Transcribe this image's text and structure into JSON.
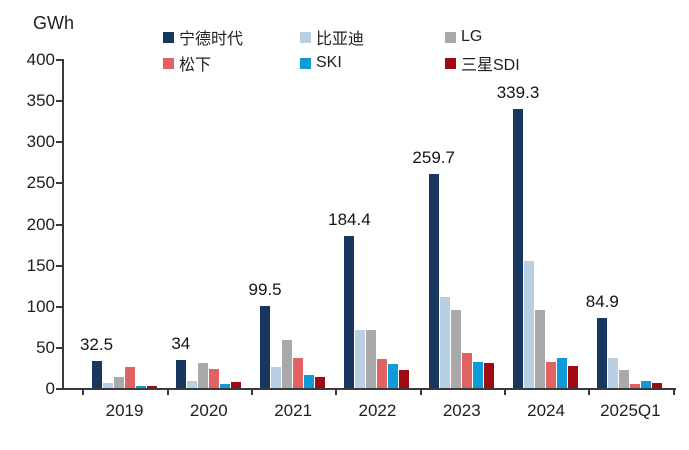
{
  "chart": {
    "unit_label": "GWh",
    "chart_data": {
      "type": "bar",
      "title": "",
      "xlabel": "",
      "ylabel": "GWh",
      "grid": false,
      "legend_position": "top",
      "categories": [
        "2019",
        "2020",
        "2021",
        "2022",
        "2023",
        "2024",
        "2025Q1"
      ],
      "series": [
        {
          "name": "宁德时代",
          "color": "#17375E",
          "values": [
            32.5,
            34,
            99.5,
            184.4,
            259.7,
            339.3,
            84.9
          ]
        },
        {
          "name": "比亚迪",
          "color": "#B8CFE4",
          "values": [
            6,
            9,
            25,
            70,
            111,
            154,
            36
          ]
        },
        {
          "name": "LG",
          "color": "#A9A9A9",
          "values": [
            13,
            30,
            58,
            71,
            95,
            95,
            22
          ]
        },
        {
          "name": "松下",
          "color": "#E16263",
          "values": [
            26,
            23,
            36,
            35,
            43,
            32,
            5
          ]
        },
        {
          "name": "SKI",
          "color": "#0E9BD8",
          "values": [
            2,
            5,
            16,
            29,
            32,
            36,
            8
          ]
        },
        {
          "name": "三星SDI",
          "color": "#9E0B10",
          "values": [
            3,
            7,
            13,
            22,
            31,
            27,
            6
          ]
        }
      ],
      "bar_labels": {
        "series": "宁德时代",
        "values": [
          "32.5",
          "34",
          "99.5",
          "184.4",
          "259.7",
          "339.3",
          "84.9"
        ]
      },
      "y_axis": {
        "min": 0,
        "max": 400,
        "step": 50,
        "tick_labels": [
          "400",
          "350",
          "300",
          "250",
          "200",
          "150",
          "100",
          "50",
          "0"
        ]
      }
    }
  }
}
